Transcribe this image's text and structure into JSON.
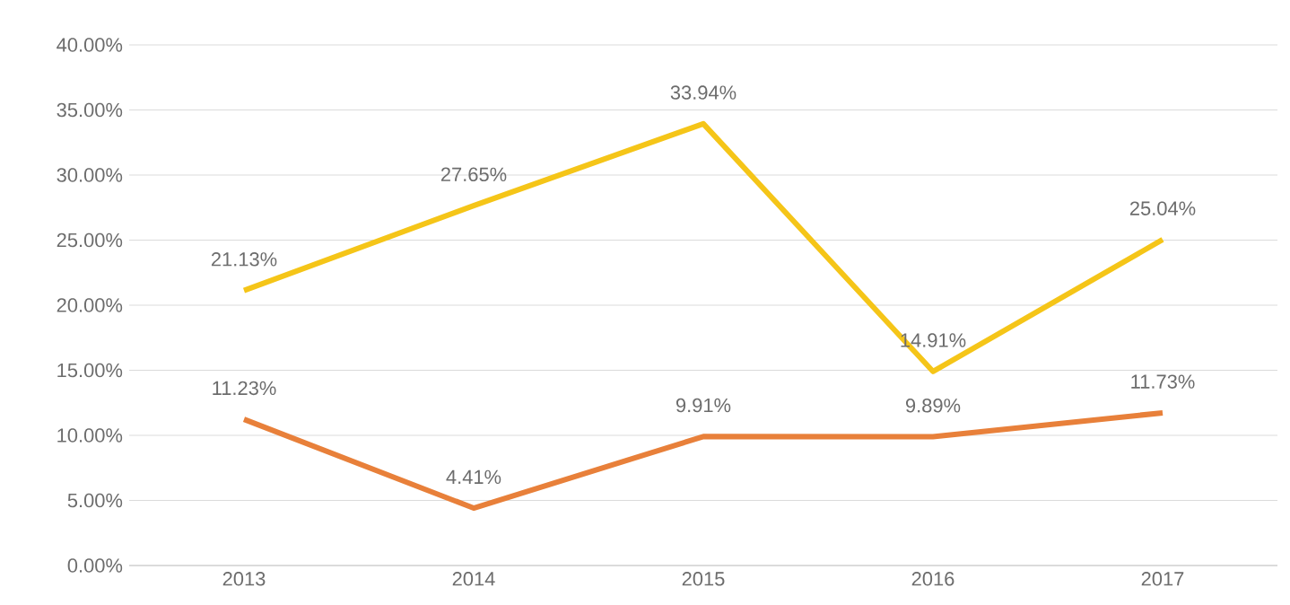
{
  "chart_data": {
    "type": "line",
    "categories": [
      "2013",
      "2014",
      "2015",
      "2016",
      "2017"
    ],
    "series": [
      {
        "color": "#f5c518",
        "values": [
          21.13,
          27.65,
          33.94,
          14.91,
          25.04
        ],
        "value_labels": [
          "21.13%",
          "27.65%",
          "33.94%",
          "14.91%",
          "25.04%"
        ]
      },
      {
        "color": "#e8803a",
        "values": [
          11.23,
          4.41,
          9.91,
          9.89,
          11.73
        ],
        "value_labels": [
          "11.23%",
          "4.41%",
          "9.91%",
          "9.89%",
          "11.73%"
        ]
      }
    ],
    "ylim": [
      0,
      40
    ],
    "yticks": [
      {
        "value": 0,
        "label": "0.00%"
      },
      {
        "value": 5,
        "label": "5.00%"
      },
      {
        "value": 10,
        "label": "10.00%"
      },
      {
        "value": 15,
        "label": "15.00%"
      },
      {
        "value": 20,
        "label": "20.00%"
      },
      {
        "value": 25,
        "label": "25.00%"
      },
      {
        "value": 30,
        "label": "30.00%"
      },
      {
        "value": 35,
        "label": "35.00%"
      },
      {
        "value": 40,
        "label": "40.00%"
      }
    ],
    "grid": "y",
    "marker": "none",
    "line_style": "solid"
  }
}
